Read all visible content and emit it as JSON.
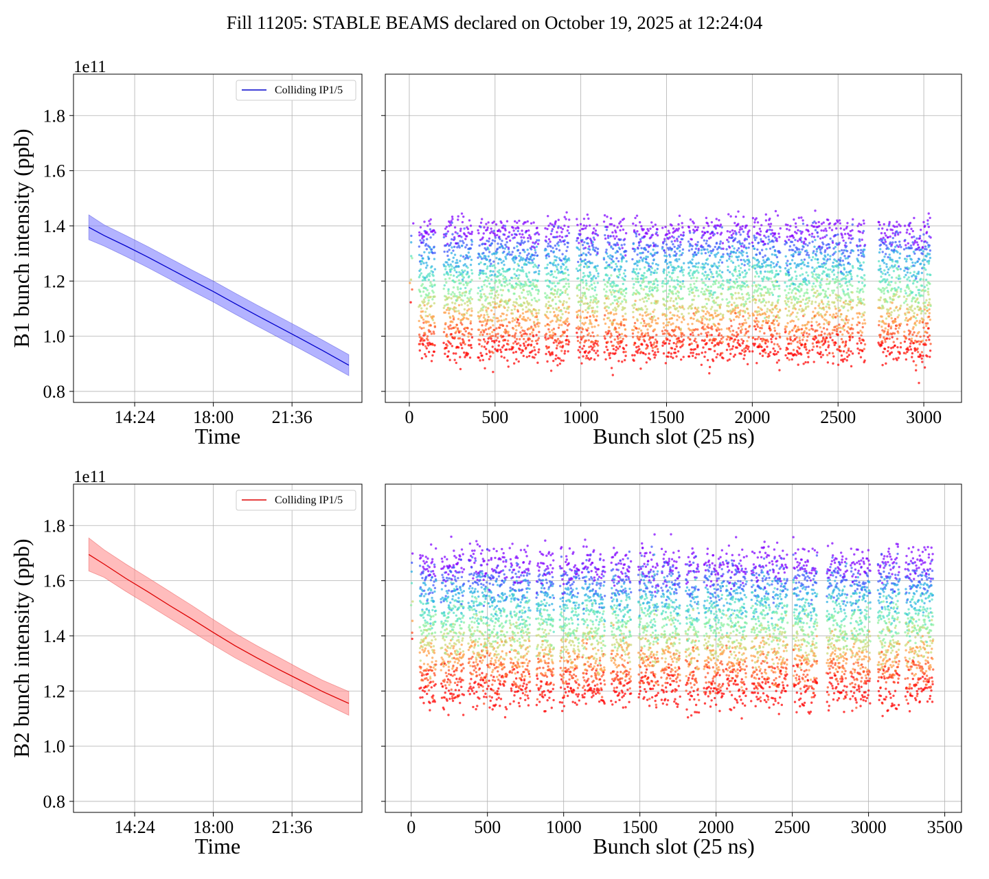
{
  "figure": {
    "title": "Fill 11205: STABLE BEAMS declared on October 19, 2025 at 12:24:04"
  },
  "chart_data": [
    {
      "type": "line",
      "panel": "B1 time evolution",
      "xlabel": "Time",
      "ylabel": "B1 bunch intensity (ppb)",
      "y_offset_label": "1e11",
      "x_tick_labels": [
        "14:24",
        "18:00",
        "21:36"
      ],
      "x_ticks_hours": [
        14.4,
        18.0,
        21.6
      ],
      "xlim_hours": [
        11.6,
        24.8
      ],
      "ylim": [
        0.76,
        1.95
      ],
      "y_ticks": [
        0.8,
        1.0,
        1.2,
        1.4,
        1.6,
        1.8
      ],
      "grid": true,
      "legend_position": "top-right",
      "series": [
        {
          "name": "Colliding IP1/5",
          "color": "#0000cc",
          "band_color": "#8080ff",
          "x_hours": [
            12.3,
            13.0,
            14.0,
            15.0,
            16.0,
            17.0,
            18.0,
            19.0,
            20.0,
            21.0,
            22.0,
            23.0,
            24.2
          ],
          "mean": [
            1.395,
            1.365,
            1.327,
            1.287,
            1.245,
            1.203,
            1.162,
            1.118,
            1.075,
            1.033,
            0.991,
            0.948,
            0.895
          ],
          "lower": [
            1.35,
            1.327,
            1.289,
            1.249,
            1.207,
            1.165,
            1.124,
            1.08,
            1.037,
            0.995,
            0.953,
            0.91,
            0.857
          ],
          "upper": [
            1.44,
            1.404,
            1.365,
            1.325,
            1.283,
            1.241,
            1.2,
            1.156,
            1.113,
            1.071,
            1.029,
            0.986,
            0.933
          ]
        }
      ]
    },
    {
      "type": "scatter",
      "panel": "B1 bunch-by-bunch",
      "xlabel": "Bunch slot (25 ns)",
      "xlim": [
        -140,
        3220
      ],
      "ylim": [
        0.76,
        1.95
      ],
      "x_ticks": [
        0,
        500,
        1000,
        1500,
        2000,
        2500,
        3000
      ],
      "y_ticks": [
        0.8,
        1.0,
        1.2,
        1.4,
        1.6,
        1.8
      ],
      "grid": true,
      "colormap": "rainbow (red = earliest lowest, purple = highest)",
      "trains": [
        [
          55,
          150
        ],
        [
          200,
          365
        ],
        [
          400,
          585
        ],
        [
          595,
          755
        ],
        [
          790,
          930
        ],
        [
          975,
          1100
        ],
        [
          1135,
          1265
        ],
        [
          1300,
          1450
        ],
        [
          1475,
          1600
        ],
        [
          1625,
          1685
        ],
        [
          1700,
          1830
        ],
        [
          1850,
          1985
        ],
        [
          2000,
          2160
        ],
        [
          2190,
          2330
        ],
        [
          2345,
          2455
        ],
        [
          2465,
          2585
        ],
        [
          2610,
          2655
        ],
        [
          2735,
          2865
        ],
        [
          2885,
          3040
        ]
      ],
      "pilot_bunch_slot": 10,
      "band_mid_range": [
        0.95,
        1.38
      ],
      "band_spread": 0.04
    },
    {
      "type": "line",
      "panel": "B2 time evolution",
      "xlabel": "Time",
      "ylabel": "B2 bunch intensity (ppb)",
      "y_offset_label": "1e11",
      "x_tick_labels": [
        "14:24",
        "18:00",
        "21:36"
      ],
      "x_ticks_hours": [
        14.4,
        18.0,
        21.6
      ],
      "xlim_hours": [
        11.6,
        24.8
      ],
      "ylim": [
        0.76,
        1.95
      ],
      "y_ticks": [
        0.8,
        1.0,
        1.2,
        1.4,
        1.6,
        1.8
      ],
      "grid": true,
      "legend_position": "top-right",
      "series": [
        {
          "name": "Colliding IP1/5",
          "color": "#dd0000",
          "band_color": "#ff9090",
          "x_hours": [
            12.3,
            13.0,
            14.0,
            15.0,
            16.0,
            17.0,
            18.0,
            19.0,
            20.0,
            21.0,
            22.0,
            23.0,
            24.2
          ],
          "mean": [
            1.695,
            1.66,
            1.608,
            1.56,
            1.51,
            1.462,
            1.412,
            1.364,
            1.32,
            1.278,
            1.238,
            1.198,
            1.155
          ],
          "lower": [
            1.635,
            1.612,
            1.561,
            1.513,
            1.464,
            1.416,
            1.367,
            1.32,
            1.278,
            1.237,
            1.198,
            1.158,
            1.112
          ],
          "upper": [
            1.755,
            1.712,
            1.66,
            1.611,
            1.561,
            1.511,
            1.459,
            1.409,
            1.364,
            1.322,
            1.279,
            1.239,
            1.198
          ]
        }
      ]
    },
    {
      "type": "scatter",
      "panel": "B2 bunch-by-bunch",
      "xlabel": "Bunch slot (25 ns)",
      "xlim": [
        -170,
        3610
      ],
      "ylim": [
        0.76,
        1.95
      ],
      "x_ticks": [
        0,
        500,
        1000,
        1500,
        2000,
        2500,
        3000,
        3500
      ],
      "y_ticks": [
        0.8,
        1.0,
        1.2,
        1.4,
        1.6,
        1.8
      ],
      "grid": true,
      "colormap": "rainbow (red = earliest lowest, purple = highest)",
      "trains": [
        [
          55,
          160
        ],
        [
          195,
          345
        ],
        [
          375,
          500
        ],
        [
          505,
          625
        ],
        [
          645,
          780
        ],
        [
          820,
          935
        ],
        [
          975,
          1100
        ],
        [
          1120,
          1270
        ],
        [
          1310,
          1440
        ],
        [
          1490,
          1620
        ],
        [
          1640,
          1760
        ],
        [
          1800,
          1885
        ],
        [
          1920,
          2050
        ],
        [
          2065,
          2200
        ],
        [
          2230,
          2350
        ],
        [
          2365,
          2465
        ],
        [
          2505,
          2610
        ],
        [
          2620,
          2660
        ],
        [
          2725,
          2860
        ],
        [
          2880,
          3010
        ],
        [
          3060,
          3200
        ],
        [
          3240,
          3420
        ]
      ],
      "pilot_bunch_slot": 5,
      "band_mid_range": [
        1.2,
        1.66
      ],
      "band_spread": 0.05
    }
  ]
}
